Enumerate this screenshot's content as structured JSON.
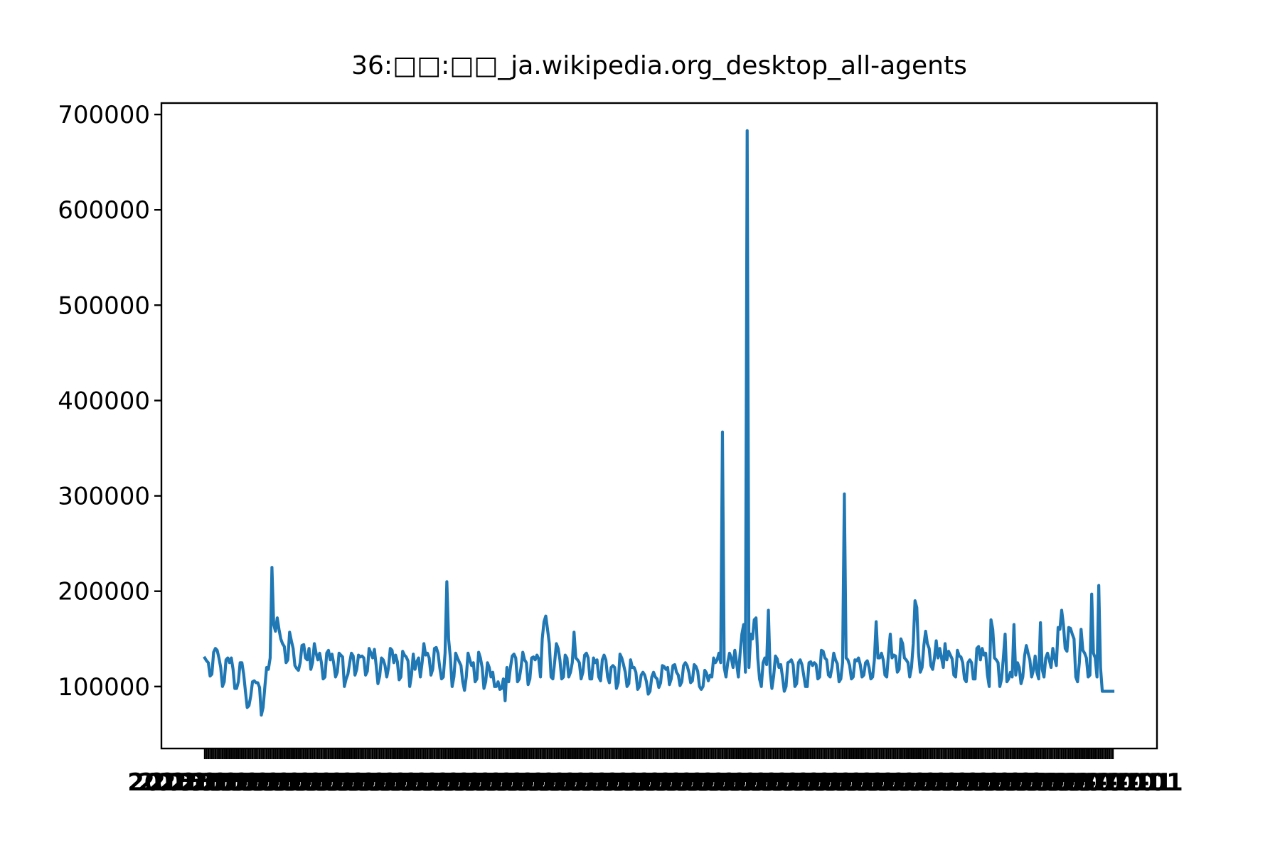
{
  "chart_data": {
    "type": "line",
    "title": "36:□□:□□_ja.wikipedia.org_desktop_all-agents",
    "xlabel": "",
    "ylabel": "",
    "ylim": [
      35000,
      712000
    ],
    "yticks": [
      100000,
      200000,
      300000,
      400000,
      500000,
      600000,
      700000
    ],
    "ytick_labels": [
      "100000",
      "200000",
      "300000",
      "400000",
      "500000",
      "600000",
      "700000"
    ],
    "x_tick_label_text": "2015-07-01",
    "grid": false,
    "legend": "none",
    "colors": {
      "line": "#1f77b4",
      "axes": "#000000",
      "background": "#ffffff"
    },
    "series": [
      {
        "n_points": 550,
        "values": [
          130000,
          127000,
          125000,
          111000,
          113000,
          136000,
          140000,
          138000,
          130000,
          120000,
          100000,
          105000,
          128000,
          130000,
          125000,
          130000,
          118000,
          98000,
          98000,
          105000,
          125000,
          125000,
          113000,
          95000,
          78000,
          80000,
          90000,
          105000,
          106000,
          104000,
          104000,
          99000,
          70000,
          78000,
          100000,
          120000,
          118000,
          130000,
          225000,
          165000,
          158000,
          172000,
          160000,
          150000,
          145000,
          142000,
          125000,
          128000,
          157000,
          148000,
          140000,
          122000,
          119000,
          117000,
          125000,
          143000,
          144000,
          130000,
          128000,
          140000,
          118000,
          125000,
          145000,
          135000,
          128000,
          135000,
          125000,
          108000,
          110000,
          135000,
          138000,
          128000,
          134000,
          124000,
          110000,
          115000,
          135000,
          133000,
          131000,
          100000,
          108000,
          113000,
          125000,
          135000,
          132000,
          112000,
          118000,
          133000,
          131000,
          132000,
          130000,
          112000,
          116000,
          140000,
          135000,
          130000,
          139000,
          122000,
          103000,
          111000,
          130000,
          128000,
          122000,
          110000,
          120000,
          140000,
          138000,
          125000,
          133000,
          126000,
          107000,
          110000,
          137000,
          133000,
          131000,
          127000,
          100000,
          112000,
          134000,
          118000,
          126000,
          130000,
          110000,
          125000,
          145000,
          133000,
          135000,
          130000,
          112000,
          118000,
          140000,
          141000,
          135000,
          120000,
          108000,
          110000,
          135000,
          210000,
          150000,
          130000,
          100000,
          110000,
          135000,
          130000,
          126000,
          122000,
          105000,
          96000,
          110000,
          135000,
          128000,
          122000,
          125000,
          105000,
          108000,
          136000,
          130000,
          120000,
          98000,
          105000,
          125000,
          120000,
          110000,
          115000,
          100000,
          100000,
          105000,
          97000,
          98000,
          108000,
          85000,
          120000,
          105000,
          120000,
          132000,
          134000,
          130000,
          105000,
          108000,
          120000,
          136000,
          128000,
          125000,
          102000,
          108000,
          130000,
          131000,
          128000,
          133000,
          129000,
          110000,
          150000,
          168000,
          174000,
          160000,
          145000,
          110000,
          108000,
          125000,
          145000,
          140000,
          128000,
          108000,
          110000,
          133000,
          130000,
          110000,
          115000,
          125000,
          157000,
          130000,
          128000,
          125000,
          108000,
          115000,
          133000,
          135000,
          130000,
          108000,
          108000,
          130000,
          125000,
          128000,
          110000,
          106000,
          128000,
          133000,
          128000,
          110000,
          104000,
          120000,
          122000,
          120000,
          98000,
          104000,
          134000,
          130000,
          123000,
          115000,
          100000,
          103000,
          128000,
          120000,
          120000,
          115000,
          97000,
          100000,
          112000,
          115000,
          112000,
          105000,
          92000,
          95000,
          110000,
          115000,
          110000,
          108000,
          99000,
          104000,
          122000,
          121000,
          118000,
          120000,
          102000,
          108000,
          122000,
          123000,
          115000,
          112000,
          101000,
          105000,
          122000,
          125000,
          122000,
          115000,
          104000,
          106000,
          123000,
          121000,
          116000,
          100000,
          97000,
          100000,
          117000,
          114000,
          106000,
          112000,
          110000,
          130000,
          125000,
          128000,
          135000,
          125000,
          367000,
          120000,
          110000,
          125000,
          135000,
          130000,
          120000,
          138000,
          125000,
          110000,
          135000,
          155000,
          165000,
          115000,
          683000,
          120000,
          155000,
          150000,
          170000,
          172000,
          130000,
          108000,
          100000,
          125000,
          130000,
          123000,
          180000,
          115000,
          98000,
          111000,
          132000,
          129000,
          120000,
          123000,
          110000,
          95000,
          100000,
          125000,
          126000,
          128000,
          123000,
          100000,
          103000,
          125000,
          128000,
          123000,
          112000,
          100000,
          100000,
          125000,
          126000,
          122000,
          125000,
          123000,
          108000,
          110000,
          138000,
          137000,
          130000,
          128000,
          112000,
          110000,
          120000,
          135000,
          128000,
          124000,
          105000,
          108000,
          125000,
          302000,
          130000,
          128000,
          122000,
          108000,
          110000,
          128000,
          127000,
          130000,
          123000,
          110000,
          112000,
          125000,
          127000,
          120000,
          108000,
          110000,
          128000,
          168000,
          130000,
          130000,
          135000,
          128000,
          112000,
          110000,
          135000,
          155000,
          130000,
          133000,
          132000,
          115000,
          118000,
          150000,
          145000,
          130000,
          128000,
          125000,
          110000,
          120000,
          145000,
          190000,
          183000,
          135000,
          115000,
          120000,
          143000,
          158000,
          145000,
          140000,
          122000,
          118000,
          130000,
          148000,
          130000,
          140000,
          130000,
          120000,
          145000,
          128000,
          137000,
          133000,
          129000,
          112000,
          110000,
          138000,
          132000,
          131000,
          125000,
          108000,
          105000,
          125000,
          128000,
          125000,
          108000,
          108000,
          140000,
          142000,
          128000,
          140000,
          133000,
          135000,
          112000,
          100000,
          170000,
          160000,
          130000,
          128000,
          125000,
          100000,
          108000,
          130000,
          155000,
          105000,
          108000,
          115000,
          110000,
          165000,
          112000,
          125000,
          120000,
          103000,
          110000,
          132000,
          143000,
          135000,
          128000,
          110000,
          117000,
          132000,
          115000,
          108000,
          167000,
          118000,
          110000,
          130000,
          135000,
          128000,
          120000,
          140000,
          130000,
          122000,
          162000,
          160000,
          180000,
          165000,
          140000,
          137000,
          162000,
          161000,
          155000,
          150000,
          110000,
          105000,
          125000,
          160000,
          138000,
          135000,
          130000,
          110000,
          112000,
          197000,
          135000,
          130000,
          110000,
          206000,
          120000,
          95000,
          95000,
          95000,
          95000,
          95000,
          95000,
          95000
        ]
      }
    ]
  }
}
